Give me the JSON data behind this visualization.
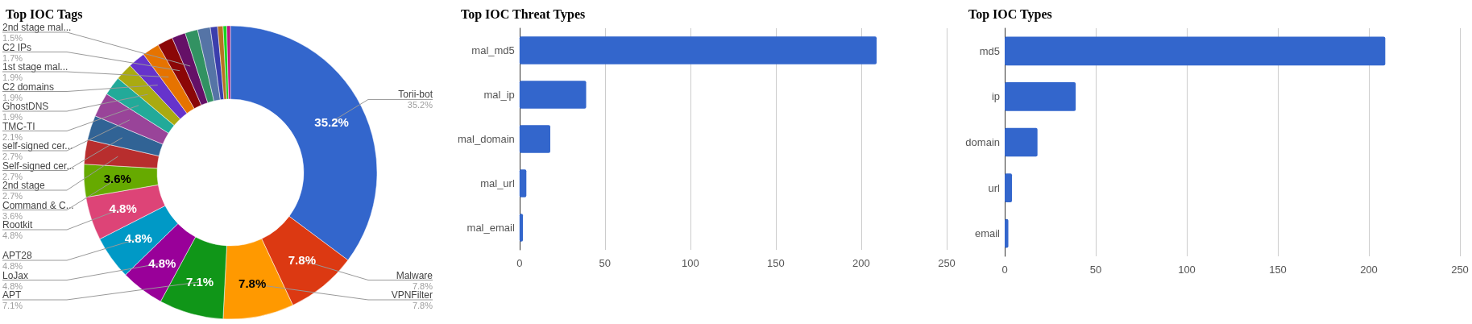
{
  "chart_data": [
    {
      "type": "donut",
      "title": "Top IOC Tags",
      "categories": [
        "Torii-bot",
        "Malware",
        "VPNFilter",
        "APT",
        "LoJax",
        "APT28",
        "Rootkit",
        "Command & C...",
        "2nd stage",
        "Self-signed cer...",
        "self-signed cer...",
        "TMC-TI",
        "GhostDNS",
        "C2 domains",
        "1st stage mal...",
        "C2 IPs",
        "2nd stage mal...",
        null,
        null,
        null,
        null,
        null,
        null
      ],
      "values": [
        35.2,
        7.8,
        7.8,
        7.1,
        4.8,
        4.8,
        4.8,
        3.6,
        2.7,
        2.7,
        2.7,
        2.1,
        1.9,
        1.9,
        1.9,
        1.7,
        1.5,
        1.4,
        1.4,
        0.8,
        0.6,
        0.4,
        0.4
      ],
      "value_labels": [
        "35.2%",
        "7.8%",
        "7.8%",
        "7.1%",
        "4.8%",
        "4.8%",
        "4.8%",
        "3.6%",
        "2.7%",
        "2.7%",
        "2.7%",
        "2.1%",
        "1.9%",
        "1.9%",
        "1.9%",
        "1.7%",
        "1.5%",
        null,
        null,
        null,
        null,
        null,
        null
      ],
      "colors": [
        "#3366cc",
        "#dc3912",
        "#ff9900",
        "#109618",
        "#990099",
        "#0099c6",
        "#dd4477",
        "#66aa00",
        "#b82e2e",
        "#316395",
        "#994499",
        "#22aa99",
        "#aaaa11",
        "#6633cc",
        "#e67300",
        "#8b0707",
        "#651067",
        "#329262",
        "#5574a6",
        "#3b3eac",
        "#b77322",
        "#16d620",
        "#b91383"
      ],
      "legend": false
    },
    {
      "type": "bar",
      "orientation": "horizontal",
      "title": "Top IOC Threat Types",
      "categories": [
        "mal_md5",
        "mal_ip",
        "mal_domain",
        "mal_url",
        "mal_email"
      ],
      "values": [
        209,
        39,
        18,
        4,
        2
      ],
      "color": "#3366cc",
      "xlim": [
        0,
        250
      ],
      "xticks": [
        0,
        50,
        100,
        150,
        200,
        250
      ],
      "grid": "x",
      "legend": false
    },
    {
      "type": "bar",
      "orientation": "horizontal",
      "title": "Top IOC Types",
      "categories": [
        "md5",
        "ip",
        "domain",
        "url",
        "email"
      ],
      "values": [
        209,
        39,
        18,
        4,
        2
      ],
      "color": "#3366cc",
      "xlim": [
        0,
        250
      ],
      "xticks": [
        0,
        50,
        100,
        150,
        200,
        250
      ],
      "grid": "x",
      "legend": false
    }
  ]
}
